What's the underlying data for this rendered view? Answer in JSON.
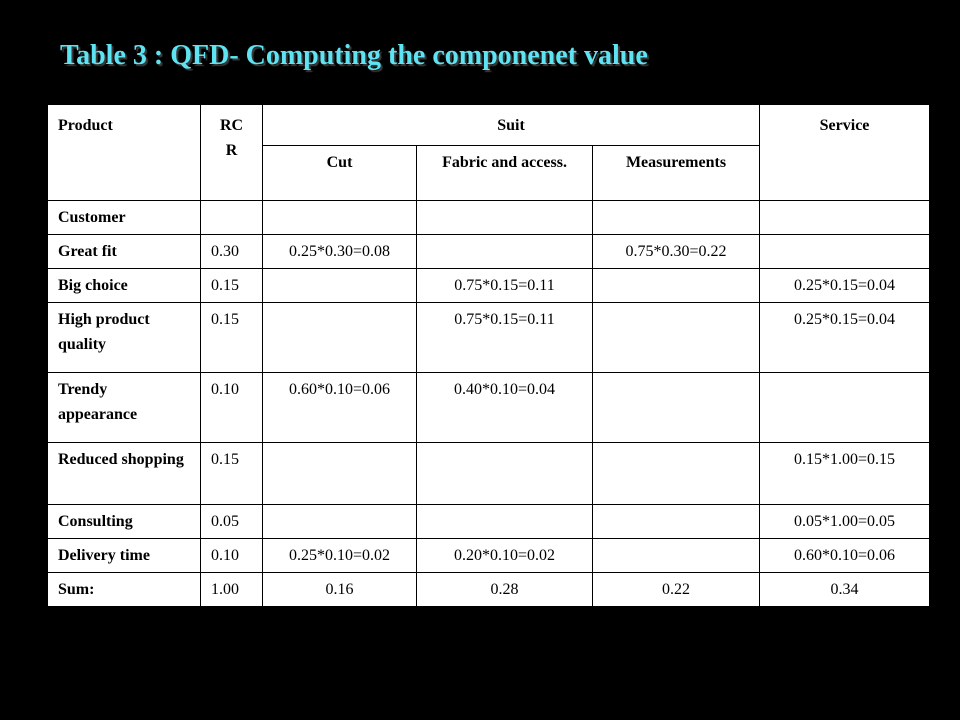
{
  "title": "Table 3 : QFD- Computing the componenet value",
  "header": {
    "product": "Product",
    "rcr": "RC R",
    "suit": "Suit",
    "service": "Service",
    "cut": "Cut",
    "fabric": "Fabric and access.",
    "measurements": "Measurements"
  },
  "rows": [
    {
      "label": "Customer",
      "rcr": "",
      "cut": "",
      "fabric": "",
      "measurements": "",
      "service": ""
    },
    {
      "label": "Great fit",
      "rcr": "0.30",
      "cut": "0.25*0.30=0.08",
      "fabric": "",
      "measurements": "0.75*0.30=0.22",
      "service": ""
    },
    {
      "label": "Big choice",
      "rcr": "0.15",
      "cut": "",
      "fabric": "0.75*0.15=0.11",
      "measurements": "",
      "service": "0.25*0.15=0.04"
    },
    {
      "label": "High product quality",
      "rcr": "0.15",
      "cut": "",
      "fabric": "0.75*0.15=0.11",
      "measurements": "",
      "service": "0.25*0.15=0.04"
    },
    {
      "label": "Trendy appearance",
      "rcr": "0.10",
      "cut": "0.60*0.10=0.06",
      "fabric": "0.40*0.10=0.04",
      "measurements": "",
      "service": ""
    },
    {
      "label": "Reduced shopping",
      "rcr": "0.15",
      "cut": "",
      "fabric": "",
      "measurements": "",
      "service": "0.15*1.00=0.15"
    },
    {
      "label": "Consulting",
      "rcr": "0.05",
      "cut": "",
      "fabric": "",
      "measurements": "",
      "service": "0.05*1.00=0.05"
    },
    {
      "label": "Delivery time",
      "rcr": "0.10",
      "cut": "0.25*0.10=0.02",
      "fabric": "0.20*0.10=0.02",
      "measurements": "",
      "service": "0.60*0.10=0.06"
    }
  ],
  "sum": {
    "label": "Sum:",
    "rcr": "1.00",
    "cut": "0.16",
    "fabric": "0.28",
    "measurements": "0.22",
    "service": "0.34"
  },
  "colors": {
    "background": "#000000",
    "title": "#5EE3F2",
    "table_bg": "#ffffff",
    "border": "#000000"
  }
}
